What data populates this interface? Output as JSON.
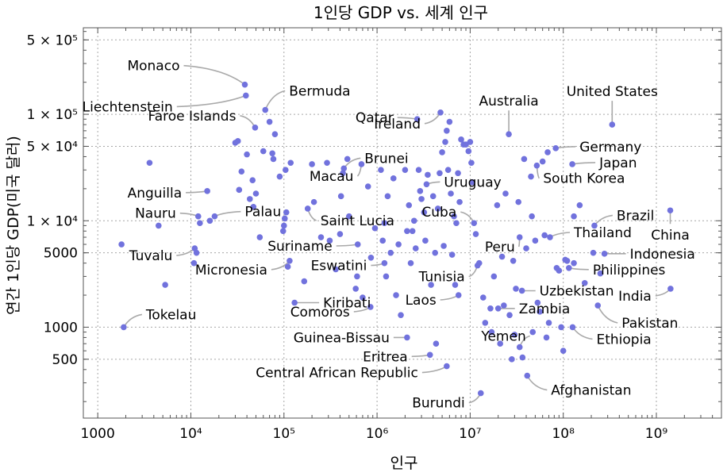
{
  "chart_data": {
    "type": "scatter",
    "title": "1인당 GDP vs. 세계 인구",
    "xlabel": "인구",
    "ylabel": "연간 1인당 GDP(미국 달러)",
    "xscale": "log",
    "yscale": "log",
    "xlim": [
      700,
      5000000000
    ],
    "ylim": [
      140,
      650000
    ],
    "grid": true,
    "point_color": "#7172dd",
    "leader_color": "#a9a9a9",
    "x_ticks": [
      {
        "value": 1000,
        "label": "1000"
      },
      {
        "value": 10000,
        "label": "10⁴"
      },
      {
        "value": 100000,
        "label": "10⁵"
      },
      {
        "value": 1000000,
        "label": "10⁶"
      },
      {
        "value": 10000000,
        "label": "10⁷"
      },
      {
        "value": 100000000,
        "label": "10⁸"
      },
      {
        "value": 1000000000,
        "label": "10⁹"
      }
    ],
    "y_ticks": [
      {
        "value": 500,
        "label": "500"
      },
      {
        "value": 1000,
        "label": "1000"
      },
      {
        "value": 5000,
        "label": "5000"
      },
      {
        "value": 10000,
        "label": "1 × 10⁴"
      },
      {
        "value": 50000,
        "label": "5 × 10⁴"
      },
      {
        "value": 100000,
        "label": "1 × 10⁵"
      },
      {
        "value": 500000,
        "label": "5 × 10⁵"
      }
    ],
    "labeled_points": [
      {
        "name": "Monaco",
        "x": 38000,
        "y": 190000
      },
      {
        "name": "Liechtenstein",
        "x": 39000,
        "y": 150000
      },
      {
        "name": "Bermuda",
        "x": 63000,
        "y": 110000
      },
      {
        "name": "Faroe Islands",
        "x": 49000,
        "y": 75000
      },
      {
        "name": "Ireland",
        "x": 4800000,
        "y": 104000
      },
      {
        "name": "Qatar",
        "x": 2700000,
        "y": 90000
      },
      {
        "name": "Australia",
        "x": 26000000,
        "y": 65000
      },
      {
        "name": "United States",
        "x": 335000000,
        "y": 80000
      },
      {
        "name": "Germany",
        "x": 83000000,
        "y": 48000
      },
      {
        "name": "Japan",
        "x": 125000000,
        "y": 34000
      },
      {
        "name": "South Korea",
        "x": 52000000,
        "y": 33000
      },
      {
        "name": "Brunei",
        "x": 440000,
        "y": 31000
      },
      {
        "name": "Macau",
        "x": 680000,
        "y": 34000
      },
      {
        "name": "Uruguay",
        "x": 3400000,
        "y": 22000
      },
      {
        "name": "Anguilla",
        "x": 15000,
        "y": 19000
      },
      {
        "name": "Nauru",
        "x": 12000,
        "y": 11000
      },
      {
        "name": "Palau",
        "x": 18000,
        "y": 11000
      },
      {
        "name": "Cuba",
        "x": 11000000,
        "y": 9500
      },
      {
        "name": "Brazil",
        "x": 216000000,
        "y": 9000
      },
      {
        "name": "China",
        "x": 1410000000,
        "y": 12500
      },
      {
        "name": "Indonesia",
        "x": 277000000,
        "y": 4900
      },
      {
        "name": "Saint Lucia",
        "x": 180000,
        "y": 13000
      },
      {
        "name": "Thailand",
        "x": 72000000,
        "y": 7000
      },
      {
        "name": "Suriname",
        "x": 620000,
        "y": 6000
      },
      {
        "name": "Peru",
        "x": 34000000,
        "y": 7000
      },
      {
        "name": "Tuvalu",
        "x": 11000,
        "y": 5500
      },
      {
        "name": "Eswatini",
        "x": 1200000,
        "y": 4000
      },
      {
        "name": "Philippines",
        "x": 115000000,
        "y": 3600
      },
      {
        "name": "Micronesia",
        "x": 115000,
        "y": 4200
      },
      {
        "name": "Tunisia",
        "x": 12000000,
        "y": 3800
      },
      {
        "name": "Uzbekistan",
        "x": 36000000,
        "y": 2200
      },
      {
        "name": "India",
        "x": 1420000000,
        "y": 2300
      },
      {
        "name": "Kiribati",
        "x": 130000,
        "y": 1700
      },
      {
        "name": "Laos",
        "x": 7500000,
        "y": 2000
      },
      {
        "name": "Zambia",
        "x": 20000000,
        "y": 1500
      },
      {
        "name": "Pakistan",
        "x": 235000000,
        "y": 1600
      },
      {
        "name": "Tokelau",
        "x": 1900,
        "y": 1000
      },
      {
        "name": "Comoros",
        "x": 850000,
        "y": 1550
      },
      {
        "name": "Guinea-Bissau",
        "x": 2100000,
        "y": 800
      },
      {
        "name": "Yemen",
        "x": 34000000,
        "y": 650
      },
      {
        "name": "Ethiopia",
        "x": 126000000,
        "y": 1000
      },
      {
        "name": "Eritrea",
        "x": 3700000,
        "y": 550
      },
      {
        "name": "Central African Republic",
        "x": 5600000,
        "y": 430
      },
      {
        "name": "Afghanistan",
        "x": 41000000,
        "y": 350
      },
      {
        "name": "Burundi",
        "x": 13000000,
        "y": 240
      }
    ],
    "other_points": [
      [
        1800,
        6000
      ],
      [
        3600,
        35000
      ],
      [
        4500,
        9000
      ],
      [
        5300,
        2500
      ],
      [
        10800,
        4000
      ],
      [
        11500,
        5000
      ],
      [
        12500,
        9500
      ],
      [
        16000,
        10000
      ],
      [
        30000,
        54000
      ],
      [
        32000,
        56000
      ],
      [
        33000,
        19500
      ],
      [
        35000,
        29000
      ],
      [
        40000,
        42000
      ],
      [
        43000,
        16000
      ],
      [
        46000,
        24000
      ],
      [
        47000,
        13500
      ],
      [
        50000,
        18000
      ],
      [
        55000,
        7000
      ],
      [
        60000,
        45000
      ],
      [
        70000,
        85000
      ],
      [
        75000,
        43000
      ],
      [
        77000,
        38000
      ],
      [
        80000,
        65000
      ],
      [
        90000,
        26000
      ],
      [
        98000,
        8000
      ],
      [
        100000,
        9000
      ],
      [
        102000,
        10500
      ],
      [
        104000,
        30000
      ],
      [
        106000,
        12000
      ],
      [
        110000,
        3700
      ],
      [
        118000,
        35000
      ],
      [
        165000,
        2700
      ],
      [
        200000,
        34000
      ],
      [
        210000,
        15000
      ],
      [
        250000,
        7000
      ],
      [
        290000,
        35000
      ],
      [
        310000,
        6500
      ],
      [
        360000,
        3500
      ],
      [
        400000,
        7500
      ],
      [
        410000,
        17000
      ],
      [
        430000,
        28000
      ],
      [
        480000,
        38000
      ],
      [
        500000,
        11000
      ],
      [
        590000,
        2300
      ],
      [
        610000,
        3000
      ],
      [
        700000,
        1900
      ],
      [
        800000,
        21000
      ],
      [
        860000,
        4500
      ],
      [
        950000,
        8500
      ],
      [
        1100000,
        30000
      ],
      [
        1150000,
        6500
      ],
      [
        1200000,
        9500
      ],
      [
        1250000,
        3000
      ],
      [
        1300000,
        17000
      ],
      [
        1400000,
        5000
      ],
      [
        1500000,
        25000
      ],
      [
        1600000,
        2000
      ],
      [
        1700000,
        6000
      ],
      [
        1800000,
        1300
      ],
      [
        2000000,
        30000
      ],
      [
        2100000,
        8000
      ],
      [
        2200000,
        14000
      ],
      [
        2300000,
        4000
      ],
      [
        2400000,
        8000
      ],
      [
        2500000,
        10000
      ],
      [
        2600000,
        5500
      ],
      [
        2800000,
        30000
      ],
      [
        2900000,
        19000
      ],
      [
        3000000,
        16000
      ],
      [
        3200000,
        12000
      ],
      [
        3300000,
        6500
      ],
      [
        3500000,
        27000
      ],
      [
        3800000,
        2500
      ],
      [
        4000000,
        17000
      ],
      [
        4200000,
        5000
      ],
      [
        4300000,
        700
      ],
      [
        4500000,
        13000
      ],
      [
        4700000,
        28000
      ],
      [
        5000000,
        44000
      ],
      [
        5200000,
        5800
      ],
      [
        5400000,
        55000
      ],
      [
        5600000,
        70000
      ],
      [
        5800000,
        30000
      ],
      [
        6000000,
        85000
      ],
      [
        6200000,
        18000
      ],
      [
        6400000,
        4800
      ],
      [
        6700000,
        11000
      ],
      [
        6900000,
        2500
      ],
      [
        7100000,
        9500
      ],
      [
        7400000,
        28000
      ],
      [
        7700000,
        15000
      ],
      [
        8000000,
        58000
      ],
      [
        8500000,
        52000
      ],
      [
        9000000,
        52000
      ],
      [
        9600000,
        45000
      ],
      [
        10000000,
        55000
      ],
      [
        10300000,
        35000
      ],
      [
        10500000,
        23000
      ],
      [
        11500000,
        7500
      ],
      [
        12500000,
        4000
      ],
      [
        13800000,
        1900
      ],
      [
        14500000,
        1100
      ],
      [
        16500000,
        1500
      ],
      [
        17000000,
        900
      ],
      [
        18000000,
        3000
      ],
      [
        19500000,
        14000
      ],
      [
        21000000,
        700
      ],
      [
        22000000,
        4600
      ],
      [
        23000000,
        1600
      ],
      [
        24000000,
        18000
      ],
      [
        26500000,
        1300
      ],
      [
        28000000,
        500
      ],
      [
        29000000,
        4200
      ],
      [
        30000000,
        850
      ],
      [
        31000000,
        2300
      ],
      [
        33000000,
        15000
      ],
      [
        36500000,
        520
      ],
      [
        38000000,
        38000
      ],
      [
        40000000,
        5500
      ],
      [
        45000000,
        26000
      ],
      [
        46000000,
        11000
      ],
      [
        47000000,
        900
      ],
      [
        50000000,
        6500
      ],
      [
        53000000,
        1700
      ],
      [
        56000000,
        1400
      ],
      [
        60000000,
        36000
      ],
      [
        63000000,
        7300
      ],
      [
        66000000,
        800
      ],
      [
        68000000,
        44000
      ],
      [
        70000000,
        1100
      ],
      [
        85000000,
        3600
      ],
      [
        90000000,
        3400
      ],
      [
        95000000,
        1000
      ],
      [
        100000000,
        600
      ],
      [
        105000000,
        4300
      ],
      [
        110000000,
        4200
      ],
      [
        130000000,
        4000
      ],
      [
        130000000,
        11000
      ],
      [
        150000000,
        14000
      ],
      [
        170000000,
        2600
      ],
      [
        210000000,
        5000
      ],
      [
        250000000,
        3200
      ]
    ]
  }
}
